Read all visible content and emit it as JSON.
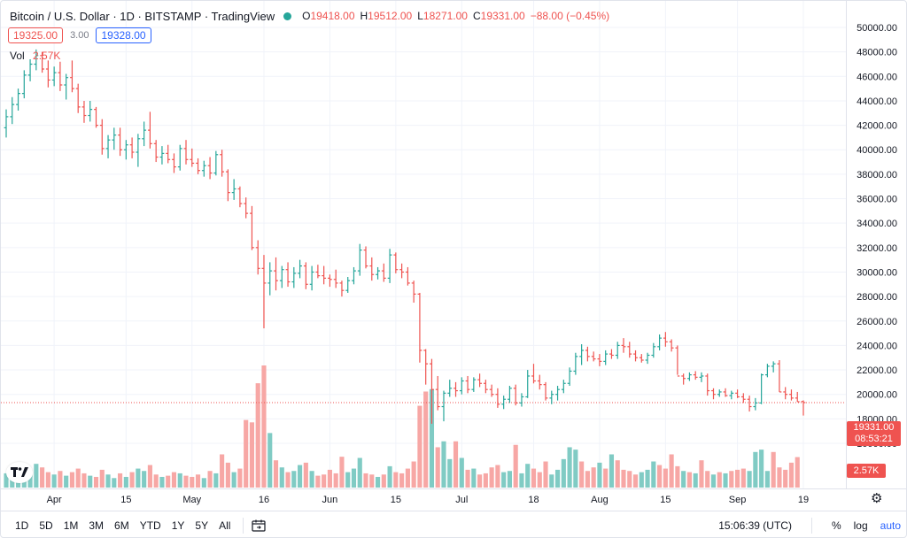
{
  "legend": {
    "symbol": "Bitcoin / U.S. Dollar · 1D · BITSTAMP · TradingView",
    "open_label": "O",
    "open": "19418.00",
    "high_label": "H",
    "high": "19512.00",
    "low_label": "L",
    "low": "18271.00",
    "close_label": "C",
    "close": "19331.00",
    "change": "−88.00 (−0.45%)"
  },
  "quote": {
    "bid": "19325.00",
    "spread": "3.00",
    "ask": "19328.00"
  },
  "volume_legend": {
    "label": "Vol",
    "value": "2.57K"
  },
  "price_tag": {
    "price": "19331.00",
    "countdown": "08:53:21"
  },
  "volume_tag": "2.57K",
  "toolbar": {
    "ranges": [
      "1D",
      "5D",
      "1M",
      "3M",
      "6M",
      "YTD",
      "1Y",
      "5Y",
      "All"
    ],
    "time": "15:06:39 (UTC)",
    "percent": "%",
    "log": "log",
    "auto": "auto"
  },
  "icons": {
    "goto": "calendar-goto-icon",
    "settings": "gear-icon",
    "logo": "tradingview-logo-icon"
  },
  "colors": {
    "up": "#26a69a",
    "down": "#ef5350",
    "vol_up": "#80cbc4",
    "vol_down": "#f7a7a5"
  },
  "chart_data": {
    "type": "ohlc-bar",
    "price_ticks": [
      16000,
      18000,
      20000,
      22000,
      24000,
      26000,
      28000,
      30000,
      32000,
      34000,
      36000,
      38000,
      40000,
      42000,
      44000,
      46000,
      48000,
      50000
    ],
    "price_tick_labels": [
      "16000.00",
      "18000.00",
      "20000.00",
      "22000.00",
      "24000.00",
      "26000.00",
      "28000.00",
      "30000.00",
      "32000.00",
      "34000.00",
      "36000.00",
      "38000.00",
      "40000.00",
      "42000.00",
      "44000.00",
      "46000.00",
      "48000.00",
      "50000.00"
    ],
    "x_labels": [
      "Apr",
      "15",
      "May",
      "16",
      "Jun",
      "15",
      "Jul",
      "18",
      "Aug",
      "15",
      "Sep",
      "19"
    ],
    "last_price": 19331,
    "grid": true,
    "bars": [
      [
        41800,
        43300,
        41000,
        42700,
        1
      ],
      [
        42700,
        44300,
        42100,
        43700,
        1
      ],
      [
        43700,
        45000,
        43200,
        44600,
        1
      ],
      [
        44600,
        46500,
        44200,
        46100,
        1
      ],
      [
        46100,
        47400,
        45600,
        47000,
        1
      ],
      [
        47000,
        48200,
        46500,
        47700,
        1
      ],
      [
        47700,
        48000,
        46300,
        46600,
        0
      ],
      [
        46600,
        47300,
        45100,
        45700,
        0
      ],
      [
        45700,
        46800,
        45200,
        46300,
        1
      ],
      [
        46300,
        47200,
        44800,
        45300,
        0
      ],
      [
        45300,
        46200,
        44100,
        45900,
        1
      ],
      [
        45900,
        47300,
        44700,
        45000,
        0
      ],
      [
        45000,
        45400,
        43000,
        43500,
        0
      ],
      [
        43500,
        44000,
        42200,
        42800,
        0
      ],
      [
        42800,
        44000,
        42300,
        43300,
        1
      ],
      [
        43300,
        43500,
        41800,
        42000,
        0
      ],
      [
        42000,
        42500,
        39600,
        40100,
        0
      ],
      [
        40100,
        41200,
        39300,
        40800,
        1
      ],
      [
        40800,
        41800,
        40000,
        41200,
        1
      ],
      [
        41200,
        41800,
        39500,
        40000,
        0
      ],
      [
        40000,
        40800,
        39200,
        40400,
        1
      ],
      [
        40400,
        41000,
        39300,
        39800,
        0
      ],
      [
        39800,
        41300,
        38600,
        40900,
        1
      ],
      [
        40900,
        42300,
        40300,
        41600,
        1
      ],
      [
        41600,
        43100,
        40100,
        40500,
        0
      ],
      [
        40500,
        40800,
        39000,
        39400,
        0
      ],
      [
        39400,
        40300,
        38800,
        39700,
        1
      ],
      [
        39700,
        40400,
        38900,
        39200,
        0
      ],
      [
        39200,
        39700,
        38100,
        38600,
        0
      ],
      [
        38600,
        40400,
        38300,
        40100,
        1
      ],
      [
        40100,
        40800,
        38800,
        39200,
        0
      ],
      [
        39200,
        40100,
        38600,
        38900,
        0
      ],
      [
        38900,
        39300,
        38000,
        38300,
        0
      ],
      [
        38300,
        39100,
        37800,
        38700,
        1
      ],
      [
        38700,
        39400,
        37600,
        38100,
        0
      ],
      [
        38100,
        39900,
        37900,
        39600,
        1
      ],
      [
        39600,
        40000,
        37800,
        38200,
        0
      ],
      [
        38200,
        38400,
        35800,
        36500,
        0
      ],
      [
        36500,
        37600,
        35900,
        36800,
        1
      ],
      [
        36800,
        37000,
        35300,
        35600,
        0
      ],
      [
        35600,
        36100,
        34400,
        34800,
        0
      ],
      [
        34800,
        35400,
        31800,
        32000,
        0
      ],
      [
        32000,
        32600,
        29800,
        30300,
        0
      ],
      [
        30300,
        31400,
        25400,
        29100,
        0
      ],
      [
        29100,
        30800,
        28100,
        30100,
        1
      ],
      [
        30100,
        31200,
        28500,
        29300,
        0
      ],
      [
        29300,
        30500,
        28700,
        30200,
        1
      ],
      [
        30200,
        30800,
        28800,
        29200,
        0
      ],
      [
        29200,
        30400,
        28700,
        29900,
        1
      ],
      [
        29900,
        31000,
        29500,
        30500,
        1
      ],
      [
        30500,
        30800,
        28600,
        29000,
        0
      ],
      [
        29000,
        30500,
        28500,
        30000,
        1
      ],
      [
        30000,
        30600,
        29500,
        29700,
        0
      ],
      [
        29700,
        30500,
        29000,
        29500,
        0
      ],
      [
        29500,
        29800,
        28800,
        29400,
        0
      ],
      [
        29400,
        30200,
        28700,
        29100,
        0
      ],
      [
        29100,
        29300,
        28000,
        28500,
        0
      ],
      [
        28500,
        29600,
        28300,
        29300,
        1
      ],
      [
        29300,
        30400,
        29000,
        30100,
        1
      ],
      [
        30100,
        32300,
        29700,
        31800,
        1
      ],
      [
        31800,
        32100,
        30300,
        30500,
        0
      ],
      [
        30500,
        31200,
        29300,
        29800,
        0
      ],
      [
        29800,
        30400,
        29400,
        30100,
        1
      ],
      [
        30100,
        30700,
        29200,
        29500,
        0
      ],
      [
        29500,
        31900,
        29100,
        31400,
        1
      ],
      [
        31400,
        31600,
        29900,
        30200,
        0
      ],
      [
        30200,
        30700,
        29500,
        30000,
        0
      ],
      [
        30000,
        30400,
        28900,
        29100,
        0
      ],
      [
        29100,
        29300,
        27500,
        28200,
        0
      ],
      [
        28200,
        28300,
        22600,
        23600,
        0
      ],
      [
        23600,
        23700,
        20800,
        22500,
        0
      ],
      [
        22500,
        22900,
        17600,
        20400,
        0
      ],
      [
        20400,
        21500,
        18700,
        19000,
        0
      ],
      [
        19000,
        20300,
        17800,
        20100,
        1
      ],
      [
        20100,
        21200,
        19800,
        20500,
        1
      ],
      [
        20500,
        21000,
        19800,
        20300,
        0
      ],
      [
        20300,
        21400,
        20000,
        21100,
        1
      ],
      [
        21100,
        21500,
        20100,
        20400,
        0
      ],
      [
        20400,
        21400,
        20200,
        21200,
        1
      ],
      [
        21200,
        21700,
        20600,
        20900,
        0
      ],
      [
        20900,
        21200,
        20100,
        20400,
        0
      ],
      [
        20400,
        20800,
        19800,
        20000,
        0
      ],
      [
        20000,
        20500,
        18900,
        19200,
        0
      ],
      [
        19200,
        19900,
        18800,
        19600,
        1
      ],
      [
        19600,
        20700,
        19300,
        20500,
        1
      ],
      [
        20500,
        20800,
        19100,
        19300,
        0
      ],
      [
        19300,
        20100,
        19000,
        19800,
        1
      ],
      [
        19800,
        22000,
        19700,
        21500,
        1
      ],
      [
        21500,
        22500,
        20900,
        21100,
        0
      ],
      [
        21100,
        21600,
        20400,
        20800,
        0
      ],
      [
        20800,
        21000,
        19500,
        19700,
        0
      ],
      [
        19700,
        20300,
        19200,
        20000,
        1
      ],
      [
        20000,
        20700,
        19500,
        20400,
        1
      ],
      [
        20400,
        21200,
        20100,
        20900,
        1
      ],
      [
        20900,
        22200,
        20700,
        21900,
        1
      ],
      [
        21900,
        23400,
        21600,
        23100,
        1
      ],
      [
        23100,
        24100,
        22400,
        23600,
        1
      ],
      [
        23600,
        23900,
        22700,
        23100,
        0
      ],
      [
        23100,
        23500,
        22700,
        22900,
        0
      ],
      [
        22900,
        23300,
        22300,
        22700,
        0
      ],
      [
        22700,
        23600,
        22400,
        23300,
        1
      ],
      [
        23300,
        23700,
        22900,
        23200,
        0
      ],
      [
        23200,
        24300,
        22900,
        24000,
        1
      ],
      [
        24000,
        24600,
        23400,
        23900,
        0
      ],
      [
        23900,
        24300,
        23000,
        23300,
        0
      ],
      [
        23300,
        23600,
        22700,
        23000,
        0
      ],
      [
        23000,
        23300,
        22600,
        22800,
        0
      ],
      [
        22800,
        23400,
        22500,
        23200,
        1
      ],
      [
        23200,
        24200,
        23000,
        23900,
        1
      ],
      [
        23900,
        24900,
        23600,
        24600,
        1
      ],
      [
        24600,
        25100,
        23900,
        24300,
        0
      ],
      [
        24300,
        24500,
        23500,
        23800,
        0
      ],
      [
        23800,
        24000,
        21600,
        21500,
        0
      ],
      [
        21500,
        21700,
        20800,
        21300,
        0
      ],
      [
        21300,
        21800,
        21100,
        21600,
        1
      ],
      [
        21600,
        21900,
        21200,
        21400,
        0
      ],
      [
        21400,
        21800,
        21000,
        21500,
        1
      ],
      [
        21500,
        21700,
        19900,
        20300,
        0
      ],
      [
        20300,
        20500,
        19600,
        20000,
        0
      ],
      [
        20000,
        20400,
        19800,
        20200,
        1
      ],
      [
        20200,
        20500,
        19800,
        19900,
        0
      ],
      [
        19900,
        20300,
        19600,
        20100,
        1
      ],
      [
        20100,
        20400,
        19700,
        19800,
        0
      ],
      [
        19800,
        20100,
        19300,
        19600,
        0
      ],
      [
        19600,
        19900,
        18600,
        19000,
        0
      ],
      [
        19000,
        19700,
        18700,
        19300,
        1
      ],
      [
        19300,
        21700,
        19200,
        21600,
        1
      ],
      [
        21600,
        22500,
        21400,
        22300,
        1
      ],
      [
        22300,
        22700,
        21800,
        22500,
        1
      ],
      [
        22500,
        22800,
        20200,
        20200,
        0
      ],
      [
        20200,
        20600,
        19600,
        20000,
        0
      ],
      [
        20000,
        20400,
        19500,
        19700,
        0
      ],
      [
        19700,
        20200,
        19400,
        19400,
        0
      ],
      [
        19418,
        19512,
        18271,
        19331,
        0
      ]
    ],
    "volumes": [
      [
        1.2,
        1
      ],
      [
        1.6,
        1
      ],
      [
        1.4,
        1
      ],
      [
        1.8,
        1
      ],
      [
        1.5,
        1
      ],
      [
        2.0,
        1
      ],
      [
        1.7,
        0
      ],
      [
        1.3,
        0
      ],
      [
        1.1,
        1
      ],
      [
        1.4,
        0
      ],
      [
        1.0,
        1
      ],
      [
        1.3,
        0
      ],
      [
        1.6,
        0
      ],
      [
        1.2,
        0
      ],
      [
        1.0,
        1
      ],
      [
        0.9,
        0
      ],
      [
        1.5,
        0
      ],
      [
        1.1,
        1
      ],
      [
        0.8,
        1
      ],
      [
        1.2,
        0
      ],
      [
        0.9,
        1
      ],
      [
        1.3,
        0
      ],
      [
        1.6,
        1
      ],
      [
        1.4,
        1
      ],
      [
        1.9,
        0
      ],
      [
        1.1,
        0
      ],
      [
        0.9,
        1
      ],
      [
        1.0,
        0
      ],
      [
        1.3,
        0
      ],
      [
        1.2,
        1
      ],
      [
        1.0,
        0
      ],
      [
        0.9,
        0
      ],
      [
        1.1,
        0
      ],
      [
        0.8,
        1
      ],
      [
        1.4,
        0
      ],
      [
        1.2,
        1
      ],
      [
        2.8,
        0
      ],
      [
        2.1,
        0
      ],
      [
        1.3,
        1
      ],
      [
        1.6,
        0
      ],
      [
        5.7,
        0
      ],
      [
        5.5,
        0
      ],
      [
        8.8,
        0
      ],
      [
        10.3,
        0
      ],
      [
        4.6,
        1
      ],
      [
        2.3,
        0
      ],
      [
        1.7,
        1
      ],
      [
        1.3,
        0
      ],
      [
        1.4,
        1
      ],
      [
        1.9,
        1
      ],
      [
        2.1,
        0
      ],
      [
        1.4,
        1
      ],
      [
        1.0,
        0
      ],
      [
        1.1,
        0
      ],
      [
        1.5,
        0
      ],
      [
        1.2,
        0
      ],
      [
        2.6,
        0
      ],
      [
        1.3,
        1
      ],
      [
        1.6,
        1
      ],
      [
        2.5,
        1
      ],
      [
        1.2,
        0
      ],
      [
        1.1,
        0
      ],
      [
        0.9,
        1
      ],
      [
        1.1,
        0
      ],
      [
        1.8,
        1
      ],
      [
        1.3,
        0
      ],
      [
        1.2,
        0
      ],
      [
        1.6,
        0
      ],
      [
        2.2,
        0
      ],
      [
        6.9,
        0
      ],
      [
        8.1,
        0
      ],
      [
        8.3,
        1
      ],
      [
        3.4,
        0
      ],
      [
        3.9,
        1
      ],
      [
        2.4,
        1
      ],
      [
        3.9,
        0
      ],
      [
        2.5,
        1
      ],
      [
        1.5,
        0
      ],
      [
        1.6,
        1
      ],
      [
        1.1,
        0
      ],
      [
        1.2,
        0
      ],
      [
        1.7,
        0
      ],
      [
        1.9,
        0
      ],
      [
        1.3,
        1
      ],
      [
        1.4,
        1
      ],
      [
        3.6,
        0
      ],
      [
        1.2,
        1
      ],
      [
        2.0,
        1
      ],
      [
        1.6,
        0
      ],
      [
        1.3,
        0
      ],
      [
        2.2,
        0
      ],
      [
        1.1,
        1
      ],
      [
        1.5,
        1
      ],
      [
        2.4,
        1
      ],
      [
        3.4,
        1
      ],
      [
        3.2,
        1
      ],
      [
        2.2,
        0
      ],
      [
        1.4,
        0
      ],
      [
        1.7,
        0
      ],
      [
        2.1,
        1
      ],
      [
        1.6,
        0
      ],
      [
        2.8,
        1
      ],
      [
        2.3,
        0
      ],
      [
        1.5,
        0
      ],
      [
        1.4,
        0
      ],
      [
        1.1,
        0
      ],
      [
        1.3,
        1
      ],
      [
        1.5,
        1
      ],
      [
        2.2,
        1
      ],
      [
        1.9,
        0
      ],
      [
        1.6,
        0
      ],
      [
        2.8,
        0
      ],
      [
        1.8,
        0
      ],
      [
        1.4,
        1
      ],
      [
        1.3,
        0
      ],
      [
        1.2,
        1
      ],
      [
        2.3,
        0
      ],
      [
        1.4,
        0
      ],
      [
        1.1,
        1
      ],
      [
        1.3,
        0
      ],
      [
        1.2,
        1
      ],
      [
        1.4,
        0
      ],
      [
        1.5,
        0
      ],
      [
        1.6,
        0
      ],
      [
        1.4,
        1
      ],
      [
        3.0,
        1
      ],
      [
        3.2,
        1
      ],
      [
        1.4,
        1
      ],
      [
        3.0,
        0
      ],
      [
        1.7,
        0
      ],
      [
        1.5,
        0
      ],
      [
        2.1,
        0
      ],
      [
        2.57,
        0
      ]
    ]
  }
}
